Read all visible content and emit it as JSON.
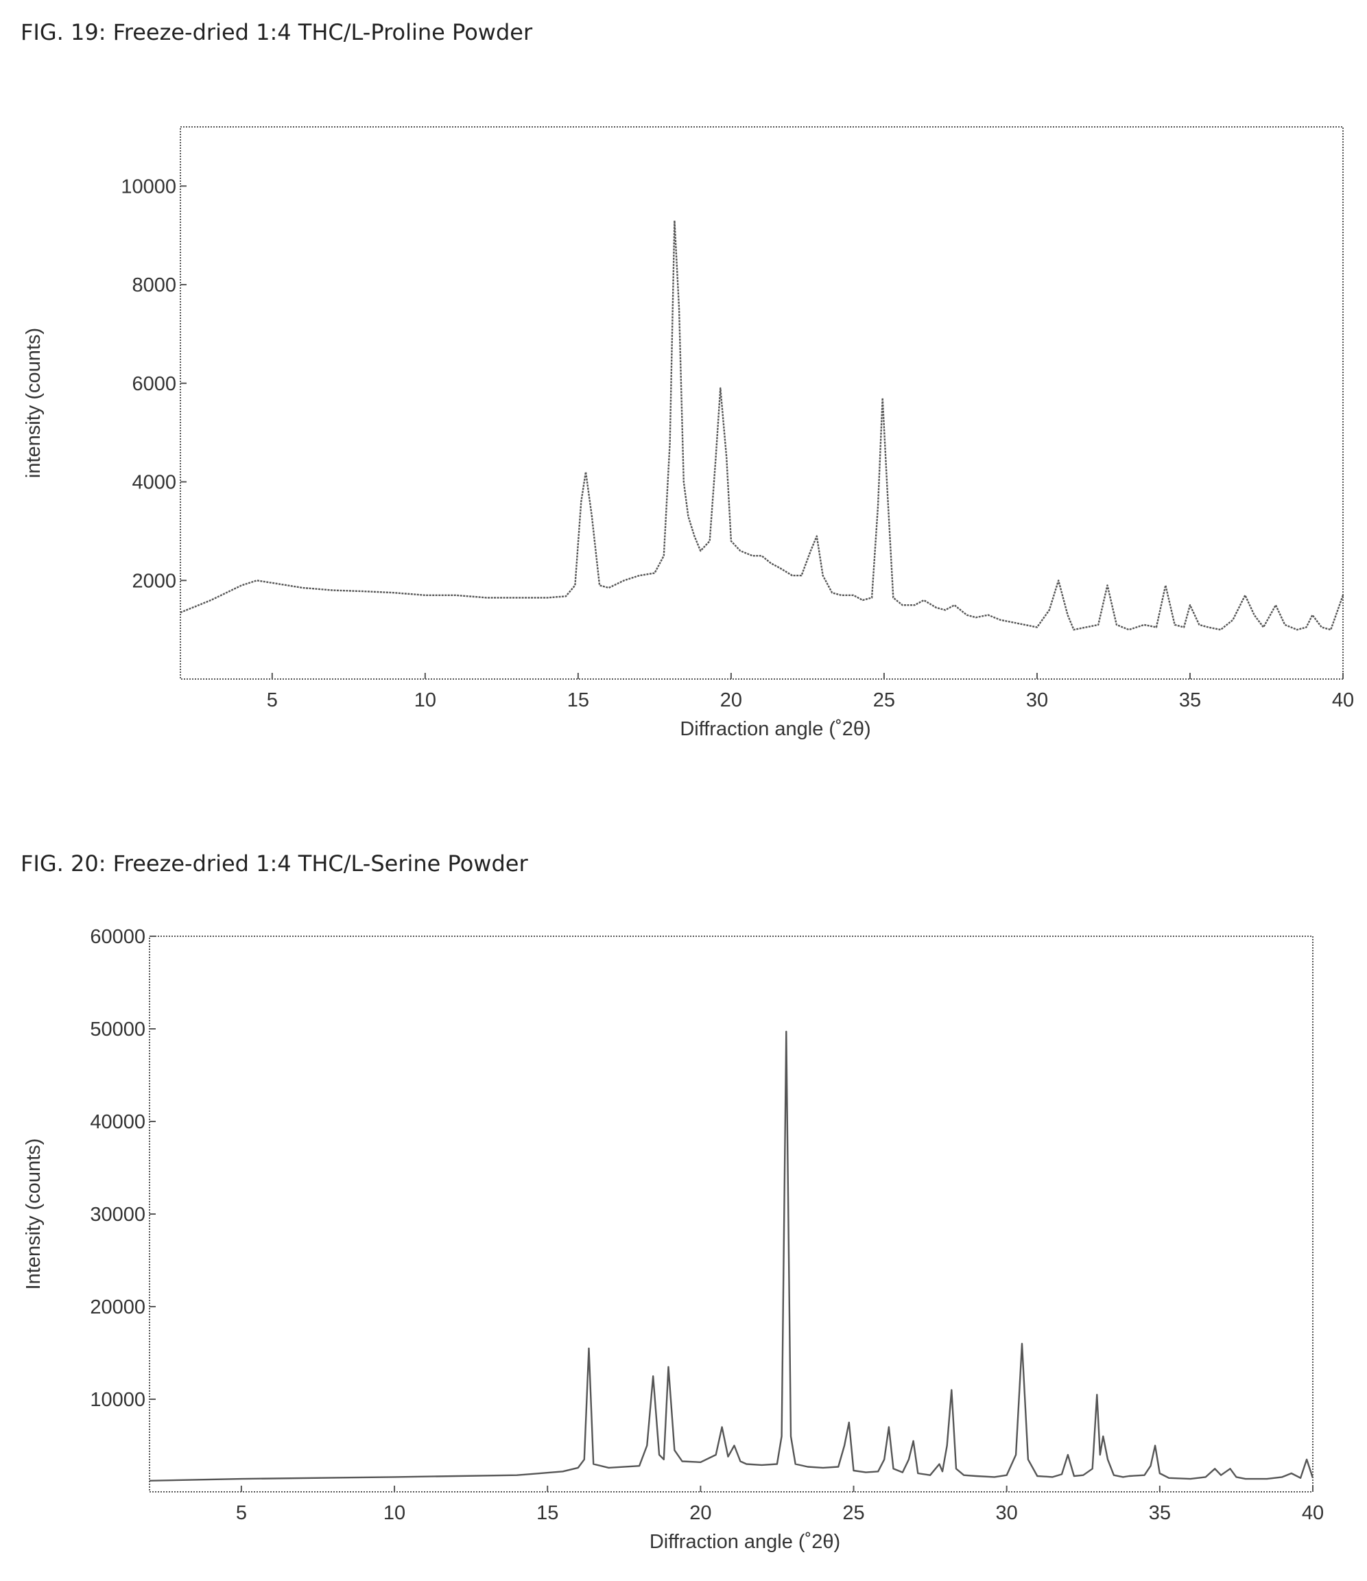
{
  "figures": [
    {
      "caption": "FIG. 19: Freeze-dried 1:4 THC/L-Proline Powder"
    },
    {
      "caption": "FIG. 20: Freeze-dried 1:4 THC/L-Serine Powder"
    }
  ],
  "chart_data": [
    {
      "type": "line",
      "title": "",
      "xlabel": "Diffraction angle (˚2θ)",
      "ylabel": "intensity (counts)",
      "xlim": [
        2,
        40
      ],
      "ylim": [
        0,
        11200
      ],
      "xticks": [
        5,
        10,
        15,
        20,
        25,
        30,
        35,
        40
      ],
      "yticks": [
        2000,
        4000,
        6000,
        8000,
        10000
      ],
      "grid": false,
      "series": [
        {
          "x": [
            2.0,
            3.0,
            4.0,
            4.5,
            5.0,
            6.0,
            7.0,
            8.0,
            9.0,
            10.0,
            11.0,
            12.0,
            13.0,
            14.0,
            14.6,
            14.9,
            15.1,
            15.25,
            15.45,
            15.7,
            16.0,
            16.5,
            17.0,
            17.5,
            17.8,
            18.0,
            18.15,
            18.3,
            18.45,
            18.6,
            18.8,
            19.0,
            19.3,
            19.5,
            19.65,
            19.85,
            20.0,
            20.3,
            20.7,
            21.0,
            21.3,
            21.6,
            22.0,
            22.3,
            22.6,
            22.8,
            23.0,
            23.3,
            23.6,
            24.0,
            24.3,
            24.6,
            24.8,
            24.95,
            25.1,
            25.3,
            25.6,
            26.0,
            26.3,
            26.7,
            27.0,
            27.3,
            27.7,
            28.0,
            28.4,
            28.8,
            29.2,
            29.6,
            30.0,
            30.4,
            30.7,
            31.0,
            31.2,
            31.6,
            32.0,
            32.3,
            32.6,
            33.0,
            33.5,
            33.9,
            34.2,
            34.5,
            34.8,
            35.0,
            35.3,
            35.6,
            36.0,
            36.4,
            36.8,
            37.1,
            37.4,
            37.8,
            38.1,
            38.5,
            38.8,
            39.0,
            39.3,
            39.6,
            40.0
          ],
          "y": [
            1350,
            1600,
            1900,
            2000,
            1950,
            1850,
            1800,
            1780,
            1750,
            1700,
            1700,
            1650,
            1650,
            1650,
            1680,
            1900,
            3600,
            4200,
            3300,
            1900,
            1850,
            2000,
            2100,
            2150,
            2500,
            4800,
            9300,
            7500,
            4000,
            3300,
            2900,
            2600,
            2800,
            4500,
            5900,
            4500,
            2800,
            2600,
            2500,
            2500,
            2350,
            2250,
            2100,
            2100,
            2600,
            2900,
            2100,
            1750,
            1700,
            1700,
            1600,
            1650,
            3500,
            5700,
            3900,
            1650,
            1500,
            1500,
            1600,
            1450,
            1400,
            1500,
            1300,
            1250,
            1300,
            1200,
            1150,
            1100,
            1050,
            1400,
            2000,
            1300,
            1000,
            1050,
            1100,
            1900,
            1100,
            1000,
            1100,
            1050,
            1900,
            1100,
            1050,
            1500,
            1100,
            1050,
            1000,
            1200,
            1700,
            1300,
            1050,
            1500,
            1100,
            1000,
            1050,
            1300,
            1050,
            1000,
            1700
          ]
        }
      ]
    },
    {
      "type": "line",
      "title": "",
      "xlabel": "Diffraction angle (˚2θ)",
      "ylabel": "Intensity (counts)",
      "xlim": [
        2,
        40
      ],
      "ylim": [
        0,
        60000
      ],
      "xticks": [
        5,
        10,
        15,
        20,
        25,
        30,
        35,
        40
      ],
      "yticks": [
        10000,
        20000,
        30000,
        40000,
        50000,
        60000
      ],
      "grid": false,
      "series": [
        {
          "x": [
            2.0,
            5.0,
            10.0,
            14.0,
            15.5,
            16.0,
            16.2,
            16.35,
            16.5,
            17.0,
            18.0,
            18.25,
            18.45,
            18.65,
            18.8,
            18.95,
            19.15,
            19.4,
            20.0,
            20.5,
            20.7,
            20.9,
            21.1,
            21.3,
            21.5,
            22.0,
            22.5,
            22.65,
            22.8,
            22.95,
            23.1,
            23.5,
            24.0,
            24.5,
            24.7,
            24.85,
            25.0,
            25.4,
            25.8,
            26.0,
            26.15,
            26.3,
            26.6,
            26.8,
            26.95,
            27.1,
            27.5,
            27.8,
            27.9,
            28.05,
            28.2,
            28.35,
            28.6,
            29.0,
            29.6,
            30.0,
            30.3,
            30.5,
            30.7,
            31.0,
            31.5,
            31.8,
            32.0,
            32.2,
            32.5,
            32.8,
            32.95,
            33.05,
            33.15,
            33.3,
            33.5,
            33.8,
            34.0,
            34.5,
            34.7,
            34.85,
            35.0,
            35.3,
            36.0,
            36.5,
            36.8,
            37.0,
            37.3,
            37.5,
            37.8,
            38.5,
            39.0,
            39.3,
            39.6,
            39.8,
            40.0
          ],
          "y": [
            1200,
            1400,
            1600,
            1800,
            2200,
            2600,
            3500,
            15500,
            3000,
            2600,
            2800,
            5000,
            12500,
            4000,
            3500,
            13500,
            4500,
            3300,
            3200,
            4000,
            7000,
            3800,
            5000,
            3300,
            3000,
            2900,
            3000,
            6000,
            49700,
            6000,
            3000,
            2700,
            2600,
            2700,
            5000,
            7500,
            2300,
            2100,
            2200,
            3500,
            7000,
            2500,
            2100,
            3500,
            5500,
            2000,
            1800,
            3000,
            2200,
            5000,
            11000,
            2500,
            1800,
            1700,
            1600,
            1800,
            4000,
            16000,
            3500,
            1700,
            1600,
            1900,
            4000,
            1700,
            1800,
            2500,
            10500,
            4000,
            6000,
            3500,
            1800,
            1600,
            1700,
            1800,
            2800,
            5000,
            2000,
            1500,
            1400,
            1600,
            2500,
            1800,
            2500,
            1600,
            1400,
            1400,
            1600,
            2000,
            1500,
            3500,
            1500
          ]
        }
      ]
    }
  ]
}
